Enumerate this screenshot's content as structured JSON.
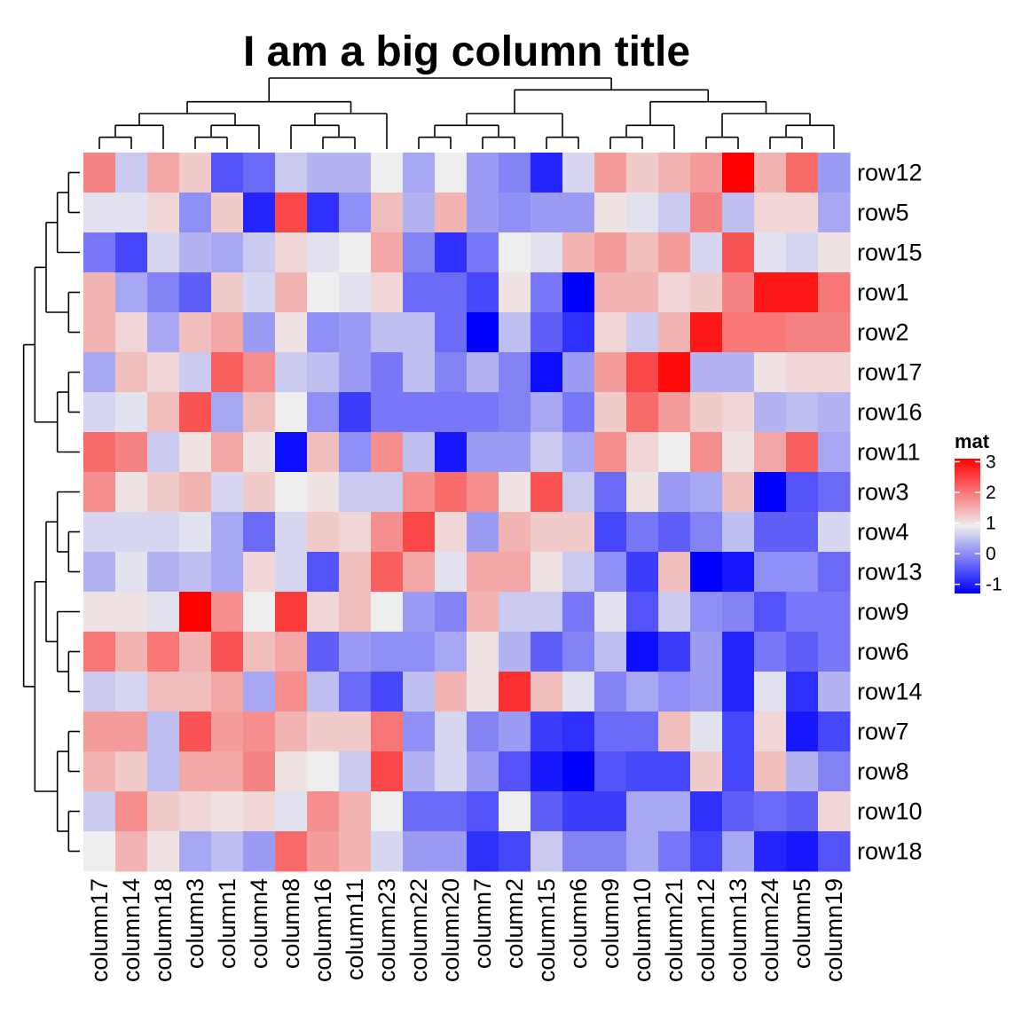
{
  "chart_data": {
    "type": "heatmap",
    "title": "I am a big column title",
    "rows": [
      "row12",
      "row5",
      "row15",
      "row1",
      "row2",
      "row17",
      "row16",
      "row11",
      "row3",
      "row4",
      "row13",
      "row9",
      "row6",
      "row14",
      "row7",
      "row8",
      "row10",
      "row18"
    ],
    "columns": [
      "column17",
      "column14",
      "column18",
      "column3",
      "column1",
      "column4",
      "column8",
      "column16",
      "column11",
      "column23",
      "column22",
      "column20",
      "column7",
      "column2",
      "column15",
      "column6",
      "column9",
      "column10",
      "column21",
      "column12",
      "column13",
      "column24",
      "column5",
      "column19"
    ],
    "values": [
      [
        1.9,
        0.7,
        1.6,
        1.3,
        -0.3,
        -0.1,
        0.7,
        0.5,
        0.5,
        1.0,
        0.4,
        1.0,
        0.3,
        0.1,
        -0.7,
        0.8,
        1.7,
        1.3,
        1.5,
        1.7,
        3.0,
        1.5,
        2.1,
        0.3
      ],
      [
        0.9,
        0.9,
        1.2,
        0.2,
        1.3,
        -0.7,
        2.4,
        -0.6,
        0.2,
        1.4,
        0.5,
        1.5,
        0.3,
        0.2,
        0.3,
        0.3,
        1.1,
        0.9,
        0.7,
        1.9,
        0.6,
        1.2,
        1.2,
        0.4
      ],
      [
        0.0,
        -0.4,
        0.8,
        0.5,
        0.4,
        0.7,
        1.2,
        0.9,
        1.0,
        1.6,
        0.1,
        -0.6,
        0.0,
        1.0,
        0.9,
        1.5,
        1.7,
        1.4,
        1.7,
        0.8,
        2.3,
        0.9,
        0.8,
        1.1
      ],
      [
        1.5,
        0.4,
        0.1,
        -0.2,
        1.3,
        0.8,
        1.5,
        1.0,
        0.9,
        1.2,
        -0.1,
        -0.1,
        -0.4,
        1.1,
        0.0,
        -1.0,
        1.5,
        1.5,
        1.2,
        1.3,
        1.9,
        2.8,
        2.8,
        2.0
      ],
      [
        1.5,
        1.2,
        0.4,
        1.4,
        1.6,
        0.3,
        1.1,
        0.2,
        0.3,
        0.6,
        0.6,
        -0.1,
        -1.0,
        0.6,
        -0.2,
        -0.6,
        1.2,
        0.7,
        1.5,
        2.8,
        2.0,
        2.0,
        1.9,
        1.9
      ],
      [
        0.4,
        1.4,
        1.2,
        0.7,
        2.2,
        1.8,
        0.7,
        0.6,
        0.3,
        0.0,
        0.6,
        0.1,
        0.5,
        0.1,
        -0.9,
        0.3,
        1.7,
        2.4,
        2.9,
        0.5,
        0.5,
        1.1,
        1.2,
        1.2
      ],
      [
        0.8,
        0.9,
        1.4,
        2.3,
        0.4,
        1.4,
        1.0,
        0.2,
        -0.5,
        0.0,
        0.0,
        0.0,
        0.0,
        0.1,
        0.4,
        0.0,
        1.3,
        2.1,
        1.7,
        1.3,
        1.2,
        0.5,
        0.6,
        0.5
      ],
      [
        2.1,
        1.9,
        0.7,
        1.1,
        1.6,
        1.1,
        -0.9,
        1.4,
        0.2,
        1.8,
        0.6,
        -0.8,
        0.3,
        0.3,
        0.7,
        0.4,
        1.8,
        1.2,
        1.0,
        1.8,
        1.1,
        1.6,
        2.2,
        0.4
      ],
      [
        1.8,
        1.1,
        1.3,
        1.5,
        0.8,
        1.3,
        1.0,
        1.1,
        0.7,
        0.7,
        1.8,
        2.1,
        1.8,
        1.1,
        2.3,
        0.7,
        -0.1,
        1.1,
        0.3,
        0.4,
        1.4,
        -1.0,
        -0.3,
        -0.1
      ],
      [
        0.8,
        0.8,
        0.8,
        0.9,
        0.4,
        -0.1,
        0.8,
        1.3,
        1.2,
        1.8,
        2.4,
        1.2,
        0.3,
        1.5,
        1.3,
        1.3,
        -0.4,
        0.0,
        -0.2,
        0.1,
        0.6,
        -0.2,
        -0.2,
        0.8
      ],
      [
        0.5,
        0.9,
        0.5,
        0.6,
        0.4,
        1.2,
        0.8,
        -0.3,
        1.4,
        2.2,
        1.6,
        0.9,
        1.6,
        1.6,
        1.1,
        0.7,
        0.2,
        -0.5,
        1.4,
        -1.0,
        -0.8,
        0.2,
        0.2,
        -0.1
      ],
      [
        1.1,
        1.1,
        0.9,
        3.0,
        1.8,
        1.0,
        2.5,
        1.2,
        1.4,
        1.0,
        0.3,
        0.1,
        1.5,
        0.7,
        0.7,
        0.0,
        0.9,
        -0.3,
        0.7,
        0.2,
        0.1,
        -0.3,
        0.0,
        0.0
      ],
      [
        2.0,
        1.5,
        2.0,
        1.5,
        2.3,
        1.4,
        1.6,
        -0.2,
        0.3,
        0.2,
        0.2,
        0.4,
        1.1,
        0.5,
        -0.2,
        0.1,
        0.6,
        -0.9,
        -0.5,
        0.3,
        -0.7,
        0.0,
        -0.2,
        0.0
      ],
      [
        0.7,
        0.8,
        1.4,
        1.4,
        1.6,
        0.4,
        1.8,
        0.6,
        -0.1,
        -0.4,
        0.6,
        1.5,
        1.1,
        2.6,
        1.4,
        0.9,
        0.1,
        0.4,
        0.2,
        0.3,
        -0.7,
        0.9,
        -0.6,
        0.5
      ],
      [
        1.7,
        1.7,
        0.6,
        2.3,
        1.7,
        1.8,
        1.5,
        1.3,
        1.3,
        2.0,
        0.2,
        0.8,
        0.1,
        0.3,
        -0.5,
        -0.6,
        -0.1,
        -0.1,
        1.4,
        0.9,
        -0.4,
        1.2,
        -0.8,
        -0.4
      ],
      [
        1.5,
        1.3,
        0.6,
        1.6,
        1.6,
        1.9,
        1.1,
        1.0,
        0.7,
        2.4,
        0.5,
        0.8,
        0.3,
        -0.3,
        -0.8,
        -1.0,
        -0.3,
        -0.4,
        -0.4,
        1.3,
        -0.4,
        1.4,
        0.5,
        0.1
      ],
      [
        0.7,
        1.8,
        1.3,
        1.2,
        1.1,
        1.2,
        0.9,
        1.8,
        1.5,
        1.0,
        -0.1,
        -0.1,
        -0.3,
        1.0,
        -0.2,
        -0.5,
        -0.5,
        0.4,
        0.4,
        -0.6,
        -0.2,
        -0.1,
        -0.2,
        1.2
      ],
      [
        1.0,
        1.5,
        1.1,
        0.4,
        0.6,
        0.3,
        2.1,
        1.7,
        1.5,
        0.8,
        0.3,
        0.3,
        -0.6,
        -0.4,
        0.7,
        0.1,
        0.1,
        0.4,
        0.0,
        -0.4,
        0.4,
        -0.7,
        -0.8,
        -0.3
      ]
    ],
    "colorscale": [
      [
        -1,
        "#0000FF"
      ],
      [
        1,
        "#EEEEEE"
      ],
      [
        3,
        "#FF0000"
      ]
    ],
    "legend": {
      "title": "mat",
      "ticks": [
        3,
        2,
        1,
        0,
        -1
      ],
      "tick_labels": [
        "3",
        "2",
        "1",
        "0",
        "-1"
      ],
      "placement": "right"
    },
    "row_dendrogram": true,
    "column_dendrogram": true
  }
}
